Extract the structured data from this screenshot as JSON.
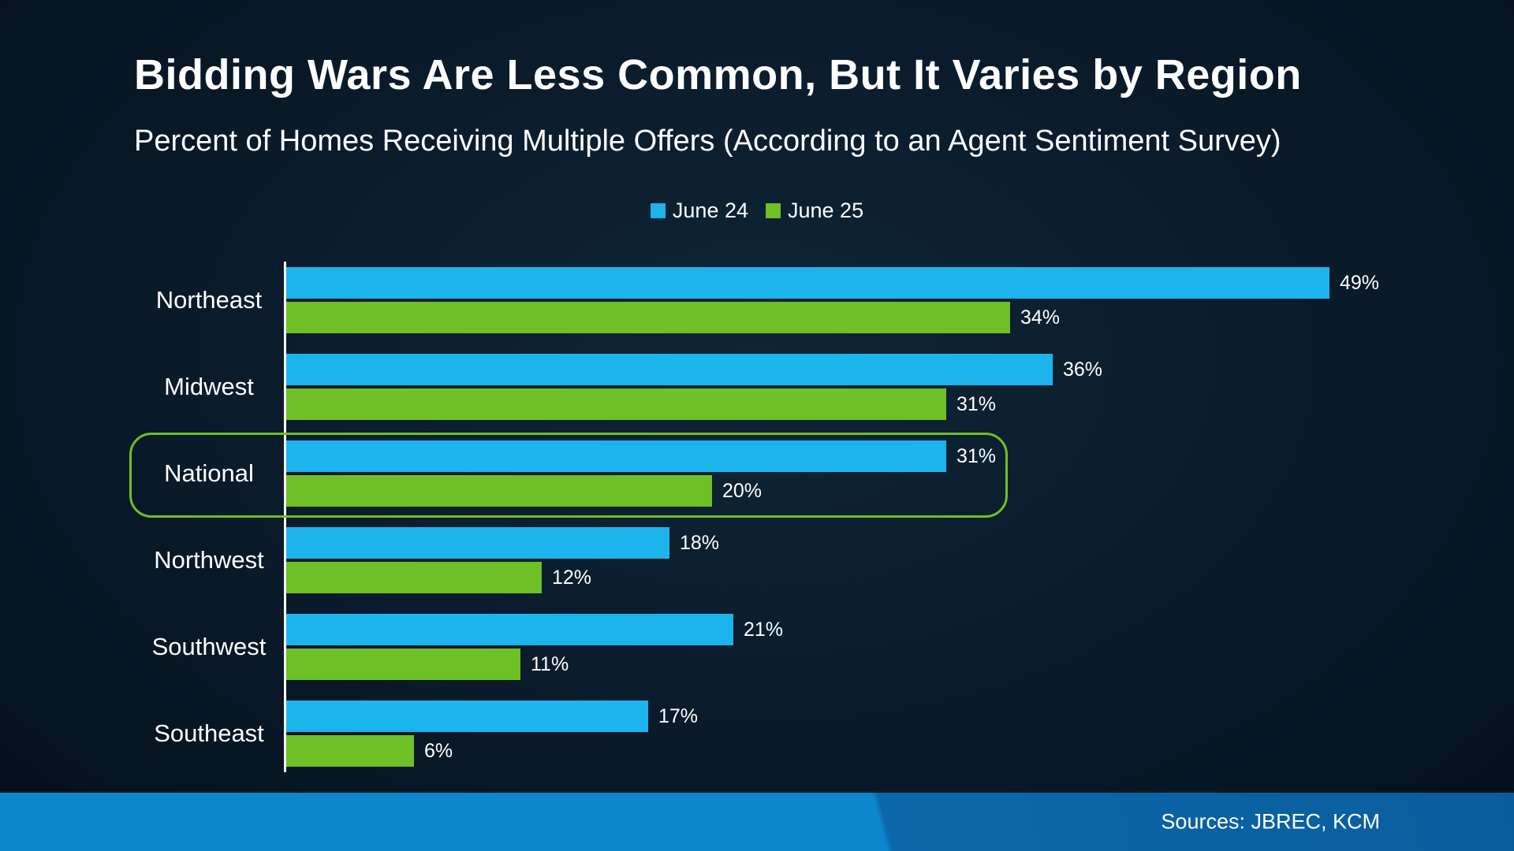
{
  "header": {
    "title": "Bidding Wars Are Less Common, But It Varies by Region",
    "subtitle": "Percent of Homes Receiving Multiple Offers (According to an Agent Sentiment Survey)"
  },
  "legend": [
    {
      "label": "June 24",
      "color": "#1cb4ec"
    },
    {
      "label": "June 25",
      "color": "#6fbf26"
    }
  ],
  "chart_data": {
    "type": "bar",
    "orientation": "horizontal",
    "title": "Bidding Wars Are Less Common, But It Varies by Region",
    "subtitle": "Percent of Homes Receiving Multiple Offers (According to an Agent Sentiment Survey)",
    "categories": [
      "Northeast",
      "Midwest",
      "National",
      "Northwest",
      "Southwest",
      "Southeast"
    ],
    "series": [
      {
        "name": "June 24",
        "color": "#1cb4ec",
        "values": [
          49,
          36,
          31,
          18,
          21,
          17
        ]
      },
      {
        "name": "June 25",
        "color": "#6fbf26",
        "values": [
          34,
          31,
          20,
          12,
          11,
          6
        ]
      }
    ],
    "value_labels": [
      [
        "49%",
        "34%"
      ],
      [
        "36%",
        "31%"
      ],
      [
        "31%",
        "20%"
      ],
      [
        "18%",
        "12%"
      ],
      [
        "21%",
        "11%"
      ],
      [
        "17%",
        "6%"
      ]
    ],
    "highlighted_category": "National",
    "xlim": [
      0,
      50
    ],
    "legend_position": "top",
    "grid": false
  },
  "footer": {
    "sources": "Sources: JBREC, KCM"
  }
}
